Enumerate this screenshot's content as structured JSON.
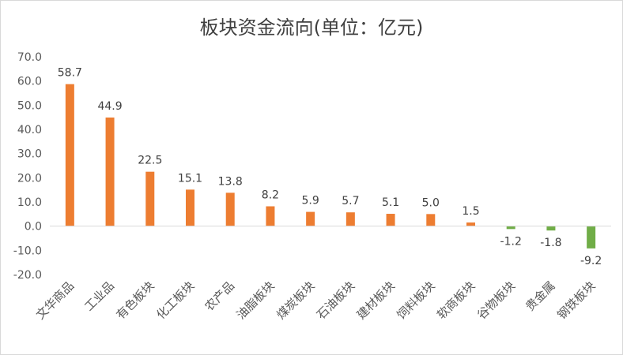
{
  "chart_data": {
    "type": "bar",
    "title": "板块资金流向(单位：亿元)",
    "xlabel": "",
    "ylabel": "",
    "ylim": [
      -20,
      70
    ],
    "yticks": [
      "70.0",
      "60.0",
      "50.0",
      "40.0",
      "30.0",
      "20.0",
      "10.0",
      "0.0",
      "-10.0",
      "-20.0"
    ],
    "grid": false,
    "legend": "none",
    "categories": [
      "文华商品",
      "工业品",
      "有色板块",
      "化工板块",
      "农产品",
      "油脂板块",
      "煤炭板块",
      "石油板块",
      "建材板块",
      "饲料板块",
      "软商板块",
      "谷物板块",
      "贵金属",
      "钢铁板块"
    ],
    "values": [
      58.7,
      44.9,
      22.5,
      15.1,
      13.8,
      8.2,
      5.9,
      5.7,
      5.1,
      5.0,
      1.5,
      -1.2,
      -1.8,
      -9.2
    ],
    "data_labels": [
      "58.7",
      "44.9",
      "22.5",
      "15.1",
      "13.8",
      "8.2",
      "5.9",
      "5.7",
      "5.1",
      "5.0",
      "1.5",
      "-1.2",
      "-1.8",
      "-9.2"
    ],
    "colors": {
      "positive": "#ed7d31",
      "negative": "#70ad47",
      "axis": "#d9d9d9"
    }
  }
}
